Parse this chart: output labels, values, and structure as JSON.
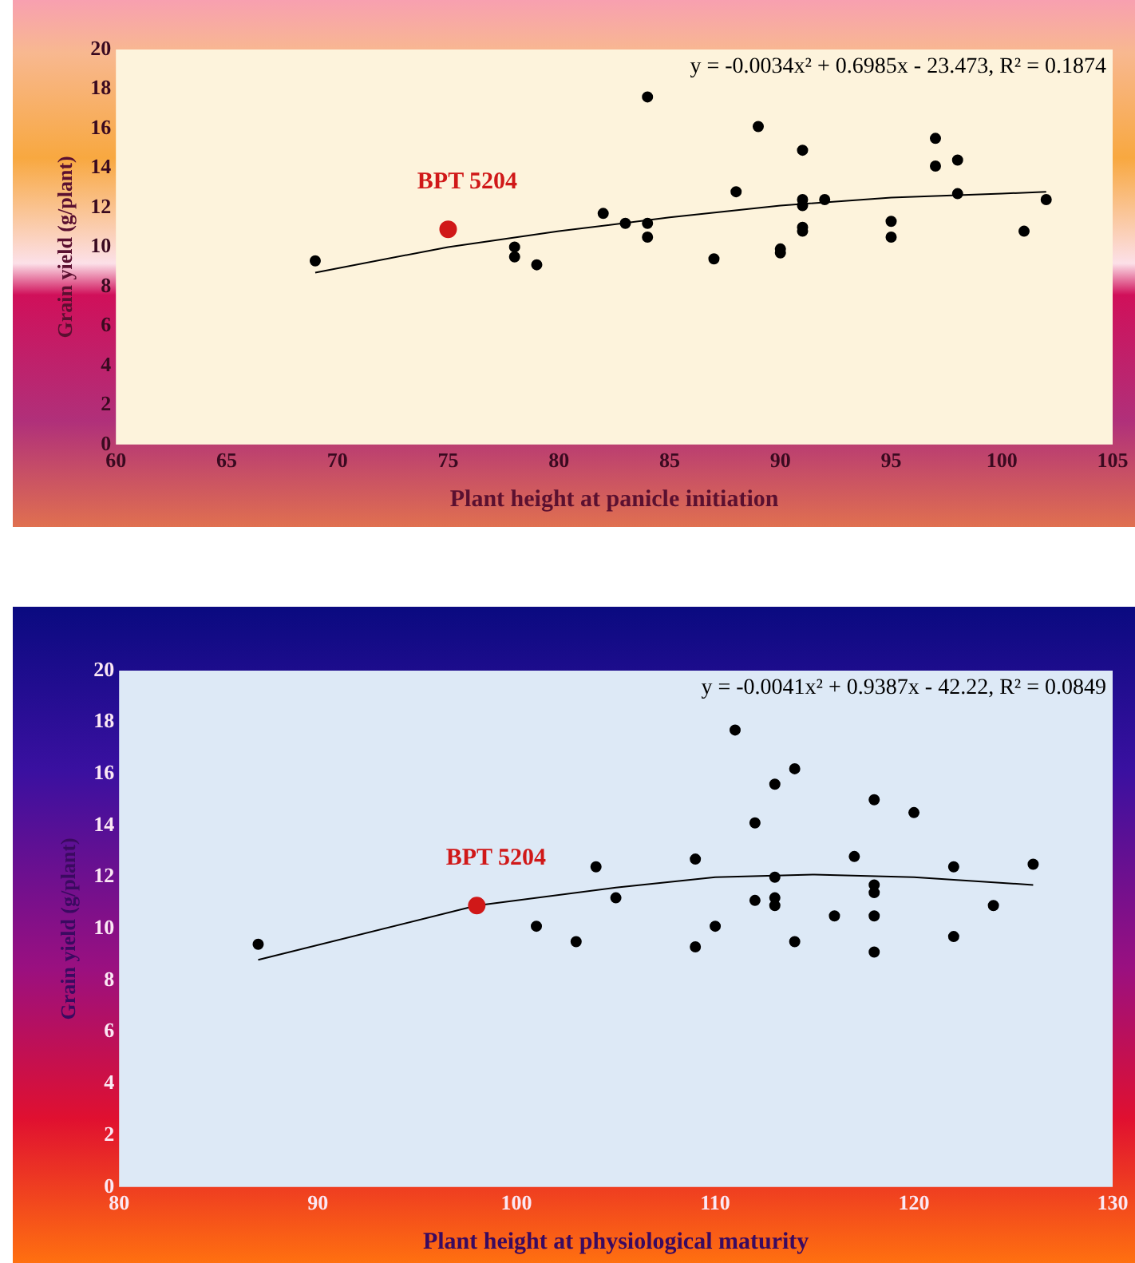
{
  "chart_data": [
    {
      "type": "scatter",
      "xlabel": "Plant height at panicle initiation",
      "ylabel": "Grain yield (g/plant)",
      "xlim": [
        60,
        105
      ],
      "xticks": [
        60,
        65,
        70,
        75,
        80,
        85,
        90,
        95,
        100,
        105
      ],
      "ylim": [
        0,
        20
      ],
      "yticks": [
        0,
        2,
        4,
        6,
        8,
        10,
        12,
        14,
        16,
        18,
        20
      ],
      "marker": "circle",
      "annotations": [
        "y = -0.0034x² + 0.6985x - 23.473, R² = 0.1874"
      ],
      "series": [
        {
          "color": "#000000",
          "x": [
            69,
            78,
            78,
            79,
            82,
            83,
            84,
            84,
            84,
            87,
            88,
            89,
            90,
            90,
            91,
            91,
            91,
            91,
            91,
            92,
            95,
            95,
            97,
            97,
            98,
            98,
            101,
            102
          ],
          "values": [
            9.3,
            10.0,
            9.5,
            9.1,
            11.7,
            11.2,
            17.6,
            11.2,
            10.5,
            9.4,
            12.8,
            16.1,
            9.9,
            9.7,
            14.9,
            12.4,
            12.1,
            11.0,
            10.8,
            12.4,
            11.3,
            10.5,
            15.5,
            14.1,
            14.4,
            12.7,
            10.8,
            12.4
          ]
        },
        {
          "name": "BPT 5204",
          "color": "#d01818",
          "x": [
            75
          ],
          "values": [
            10.9
          ]
        },
        {
          "type": "line",
          "marker": "none",
          "color": "#000000",
          "x": [
            69,
            75,
            80,
            85,
            90,
            95,
            100,
            102
          ],
          "values": [
            8.7,
            10.0,
            10.8,
            11.5,
            12.1,
            12.5,
            12.7,
            12.8
          ]
        }
      ]
    },
    {
      "type": "scatter",
      "xlabel": "Plant height at physiological maturity",
      "ylabel": "Grain yield (g/plant)",
      "xlim": [
        80,
        130
      ],
      "xticks": [
        80,
        90,
        100,
        110,
        120,
        130
      ],
      "ylim": [
        0,
        20
      ],
      "yticks": [
        0,
        2,
        4,
        6,
        8,
        10,
        12,
        14,
        16,
        18,
        20
      ],
      "marker": "circle",
      "annotations": [
        "y = -0.0041x² + 0.9387x - 42.22, R² = 0.0849"
      ],
      "series": [
        {
          "color": "#000000",
          "x": [
            87,
            101,
            103,
            104,
            105,
            109,
            109,
            110,
            111,
            112,
            112,
            113,
            113,
            113,
            113,
            114,
            114,
            116,
            117,
            118,
            118,
            118,
            118,
            118,
            120,
            122,
            122,
            124,
            126
          ],
          "values": [
            9.4,
            10.1,
            9.5,
            12.4,
            11.2,
            12.7,
            9.3,
            10.1,
            17.7,
            14.1,
            11.1,
            15.6,
            12.0,
            11.2,
            10.9,
            16.2,
            9.5,
            10.5,
            12.8,
            15.0,
            11.7,
            11.4,
            10.5,
            9.1,
            14.5,
            12.4,
            9.7,
            10.9,
            12.5
          ]
        },
        {
          "name": "BPT 5204",
          "color": "#d01818",
          "x": [
            98
          ],
          "values": [
            10.9
          ]
        },
        {
          "type": "line",
          "marker": "none",
          "color": "#000000",
          "x": [
            87,
            98,
            105,
            110,
            115,
            120,
            126
          ],
          "values": [
            8.8,
            10.9,
            11.6,
            12.0,
            12.1,
            12.0,
            11.7
          ]
        }
      ]
    }
  ]
}
